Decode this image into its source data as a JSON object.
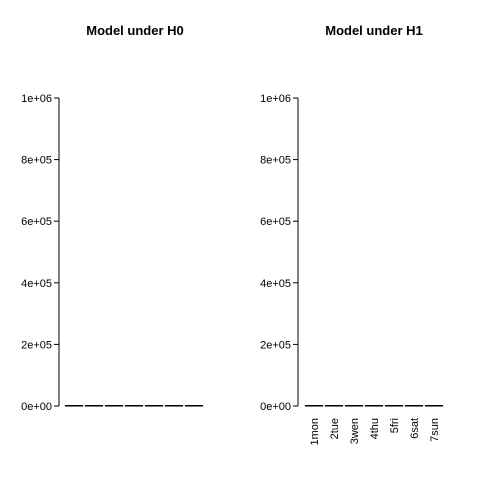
{
  "chart_data": [
    {
      "type": "bar",
      "title": "Model under H0",
      "xlabel": "",
      "ylabel": "",
      "ylim": [
        0,
        1000000
      ],
      "yticks": [
        {
          "value": 0,
          "label": "0e+00"
        },
        {
          "value": 200000,
          "label": "2e+05"
        },
        {
          "value": 400000,
          "label": "4e+05"
        },
        {
          "value": 600000,
          "label": "6e+05"
        },
        {
          "value": 800000,
          "label": "8e+05"
        },
        {
          "value": 1000000,
          "label": "1e+06"
        }
      ],
      "categories": [
        "",
        "",
        "",
        "",
        "",
        "",
        ""
      ],
      "values": [
        0,
        0,
        0,
        0,
        0,
        0,
        0
      ]
    },
    {
      "type": "bar",
      "title": "Model under H1",
      "xlabel": "",
      "ylabel": "",
      "ylim": [
        0,
        1000000
      ],
      "yticks": [
        {
          "value": 0,
          "label": "0e+00"
        },
        {
          "value": 200000,
          "label": "2e+05"
        },
        {
          "value": 400000,
          "label": "4e+05"
        },
        {
          "value": 600000,
          "label": "6e+05"
        },
        {
          "value": 800000,
          "label": "8e+05"
        },
        {
          "value": 1000000,
          "label": "1e+06"
        }
      ],
      "categories": [
        "1mon",
        "2tue",
        "3wen",
        "4thu",
        "5fri",
        "6sat",
        "7sun"
      ],
      "values": [
        0,
        0,
        0,
        0,
        0,
        0,
        0
      ]
    }
  ]
}
